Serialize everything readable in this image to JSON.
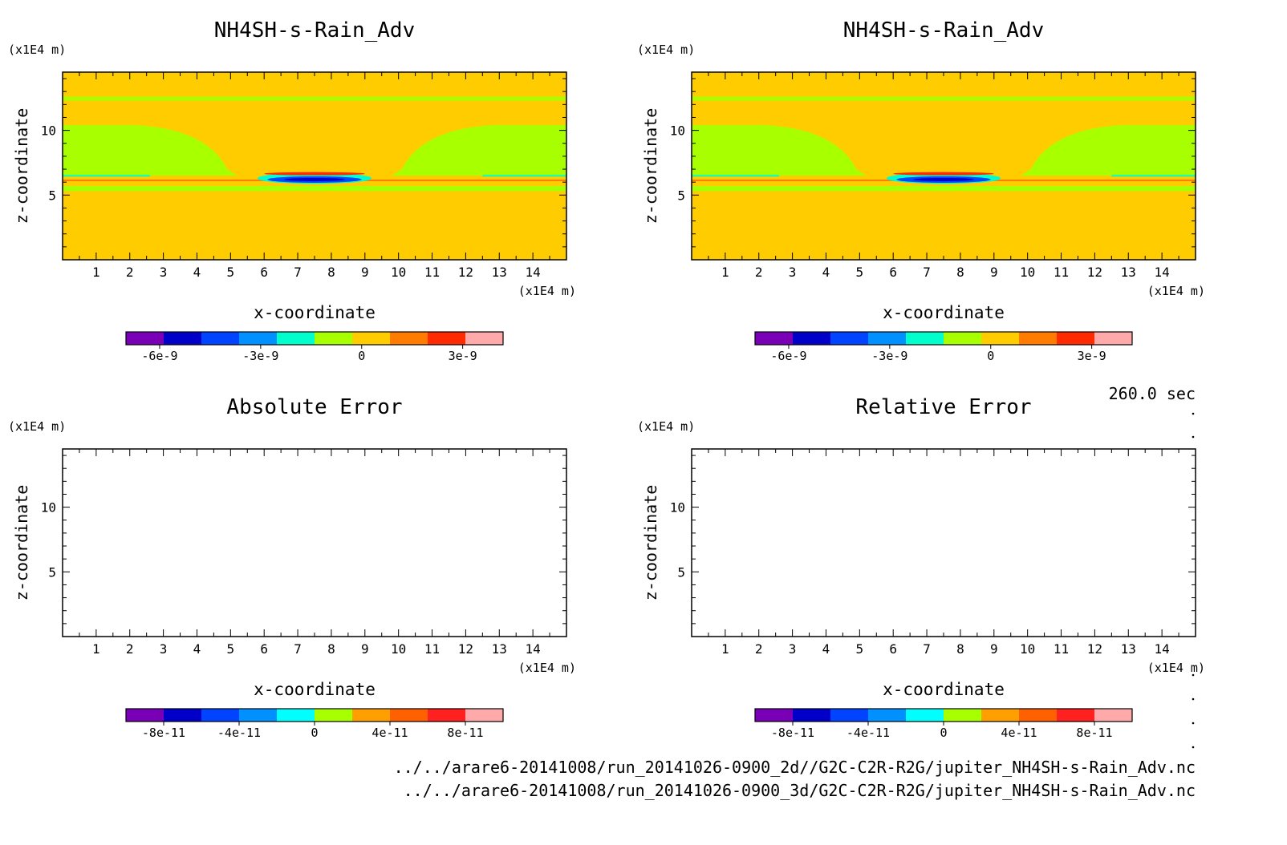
{
  "time_label": "260.0 sec",
  "file_paths": [
    "../../arare6-20141008/run_20141026-0900_2d//G2C-C2R-R2G/jupiter_NH4SH-s-Rain_Adv.nc",
    "../../arare6-20141008/run_20141026-0900_3d/G2C-C2R-R2G/jupiter_NH4SH-s-Rain_Adv.nc"
  ],
  "colors": {
    "background_field": "#ffcc00",
    "cloud_field": "#a8ff00",
    "frame": "#000000"
  },
  "chart_data": [
    {
      "type": "heatmap",
      "title": "NH4SH-s-Rain_Adv",
      "xlabel": "x-coordinate",
      "ylabel": "z-coordinate",
      "x_unit": "(x1E4 m)",
      "y_unit": "(x1E4 m)",
      "xlim": [
        0,
        15
      ],
      "ylim": [
        0,
        14.5
      ],
      "x_ticks": [
        1,
        2,
        3,
        4,
        5,
        6,
        7,
        8,
        9,
        10,
        11,
        12,
        13,
        14
      ],
      "y_ticks": [
        5,
        10
      ],
      "field": "filled",
      "colorbar": {
        "colors": [
          "#7a00b8",
          "#0000c8",
          "#0044ff",
          "#0090ff",
          "#00ffcc",
          "#a8ff00",
          "#ffcc00",
          "#ff7c00",
          "#ff2a00",
          "#ffaaaa"
        ],
        "tick_labels": [
          "-6e-9",
          "-3e-9",
          "0",
          "3e-9"
        ],
        "tick_values": [
          -6e-09,
          -3e-09,
          0,
          3e-09
        ],
        "range": [
          -7e-09,
          4.2e-09
        ]
      }
    },
    {
      "type": "heatmap",
      "title": "NH4SH-s-Rain_Adv",
      "xlabel": "x-coordinate",
      "ylabel": "z-coordinate",
      "x_unit": "(x1E4 m)",
      "y_unit": "(x1E4 m)",
      "xlim": [
        0,
        15
      ],
      "ylim": [
        0,
        14.5
      ],
      "x_ticks": [
        1,
        2,
        3,
        4,
        5,
        6,
        7,
        8,
        9,
        10,
        11,
        12,
        13,
        14
      ],
      "y_ticks": [
        5,
        10
      ],
      "field": "filled",
      "colorbar": {
        "colors": [
          "#7a00b8",
          "#0000c8",
          "#0044ff",
          "#0090ff",
          "#00ffcc",
          "#a8ff00",
          "#ffcc00",
          "#ff7c00",
          "#ff2a00",
          "#ffaaaa"
        ],
        "tick_labels": [
          "-6e-9",
          "-3e-9",
          "0",
          "3e-9"
        ],
        "tick_values": [
          -6e-09,
          -3e-09,
          0,
          3e-09
        ],
        "range": [
          -7e-09,
          4.2e-09
        ]
      }
    },
    {
      "type": "heatmap",
      "title": "Absolute Error",
      "xlabel": "x-coordinate",
      "ylabel": "z-coordinate",
      "x_unit": "(x1E4 m)",
      "y_unit": "(x1E4 m)",
      "xlim": [
        0,
        15
      ],
      "ylim": [
        0,
        14.5
      ],
      "x_ticks": [
        1,
        2,
        3,
        4,
        5,
        6,
        7,
        8,
        9,
        10,
        11,
        12,
        13,
        14
      ],
      "y_ticks": [
        5,
        10
      ],
      "field": "empty",
      "colorbar": {
        "colors": [
          "#7a00b8",
          "#0000c8",
          "#0044ff",
          "#0090ff",
          "#00ffff",
          "#a8ff00",
          "#ffa000",
          "#ff6000",
          "#ff2020",
          "#ffaaaa"
        ],
        "tick_labels": [
          "-8e-11",
          "-4e-11",
          "0",
          "4e-11",
          "8e-11"
        ],
        "tick_values": [
          -8e-11,
          -4e-11,
          0,
          4e-11,
          8e-11
        ],
        "range": [
          -1e-10,
          1e-10
        ]
      }
    },
    {
      "type": "heatmap",
      "title": "Relative Error",
      "xlabel": "x-coordinate",
      "ylabel": "z-coordinate",
      "x_unit": "(x1E4 m)",
      "y_unit": "(x1E4 m)",
      "xlim": [
        0,
        15
      ],
      "ylim": [
        0,
        14.5
      ],
      "x_ticks": [
        1,
        2,
        3,
        4,
        5,
        6,
        7,
        8,
        9,
        10,
        11,
        12,
        13,
        14
      ],
      "y_ticks": [
        5,
        10
      ],
      "field": "empty",
      "colorbar": {
        "colors": [
          "#7a00b8",
          "#0000c8",
          "#0044ff",
          "#0090ff",
          "#00ffff",
          "#a8ff00",
          "#ffa000",
          "#ff6000",
          "#ff2020",
          "#ffaaaa"
        ],
        "tick_labels": [
          "-8e-11",
          "-4e-11",
          "0",
          "4e-11",
          "8e-11"
        ],
        "tick_values": [
          -8e-11,
          -4e-11,
          0,
          4e-11,
          8e-11
        ],
        "range": [
          -1e-10,
          1e-10
        ]
      }
    }
  ]
}
